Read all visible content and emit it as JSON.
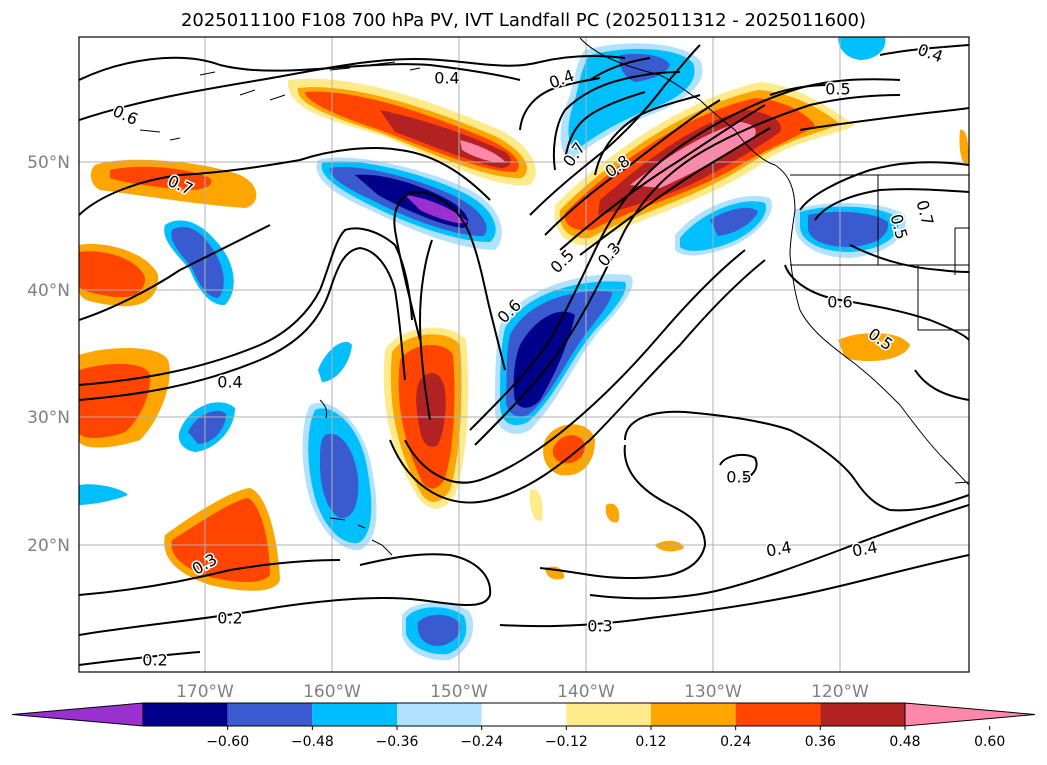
{
  "title": "2025011100 F108 700 hPa PV, IVT Landfall PC (2025011312 - 2025011600)",
  "lon_ticks": [
    "170°W",
    "160°W",
    "150°W",
    "140°W",
    "130°W",
    "120°W"
  ],
  "lat_ticks": [
    "50°N",
    "40°N",
    "30°N",
    "20°N"
  ],
  "colorbar": {
    "colors": [
      "#9b30d0",
      "#00008b",
      "#3a5bcf",
      "#00bfff",
      "#b0e2ff",
      "#ffffff",
      "#ffea8a",
      "#ffa500",
      "#ff4500",
      "#b22222",
      "#ff88aa"
    ],
    "tick_labels": [
      "−0.60",
      "−0.48",
      "−0.36",
      "−0.24",
      "−0.12",
      "0.12",
      "0.24",
      "0.36",
      "0.48",
      "0.60"
    ]
  },
  "contour_labels": [
    "0.4",
    "0.6",
    "0.7",
    "0.4",
    "0.8",
    "0.7",
    "0.5",
    "0.3",
    "0.5",
    "0.6",
    "0.5",
    "0.7",
    "0.6",
    "0.5",
    "0.4",
    "0.4",
    "0.5",
    "0.4",
    "0.3",
    "0.2",
    "0.3",
    "0.2",
    "0.4"
  ]
}
